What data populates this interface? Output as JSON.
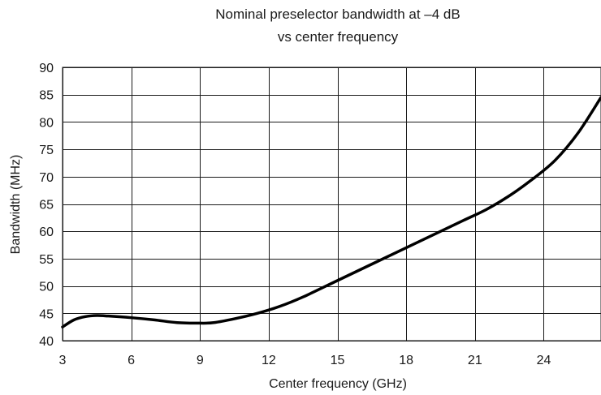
{
  "chart_data": {
    "type": "line",
    "title": "Nominal preselector bandwidth at –4 dB",
    "subtitle": "vs center frequency",
    "xlabel": "Center frequency (GHz)",
    "ylabel": "Bandwidth (MHz)",
    "xlim": [
      3,
      26.5
    ],
    "ylim": [
      40,
      90
    ],
    "xticks": [
      3,
      6,
      9,
      12,
      15,
      18,
      21,
      24
    ],
    "yticks": [
      40,
      45,
      50,
      55,
      60,
      65,
      70,
      75,
      80,
      85,
      90
    ],
    "grid": true,
    "colors": {
      "line": "#000000",
      "grid": "#1a1a1a",
      "text": "#1a1a1a"
    },
    "series": [
      {
        "x": [
          3,
          3.5,
          4,
          4.5,
          5,
          6,
          7,
          8,
          9,
          9.6,
          10.5,
          11.5,
          12.5,
          13.5,
          15,
          16.5,
          18,
          19.5,
          20.5,
          21.5,
          22.5,
          23.5,
          24.5,
          25.5,
          26.5
        ],
        "values": [
          42.5,
          43.8,
          44.4,
          44.6,
          44.5,
          44.2,
          43.8,
          43.3,
          43.2,
          43.3,
          44.0,
          45.0,
          46.3,
          48.0,
          51.0,
          54.0,
          57.0,
          60.0,
          62.0,
          64.0,
          66.5,
          69.5,
          73.0,
          78.0,
          84.5
        ]
      }
    ]
  }
}
